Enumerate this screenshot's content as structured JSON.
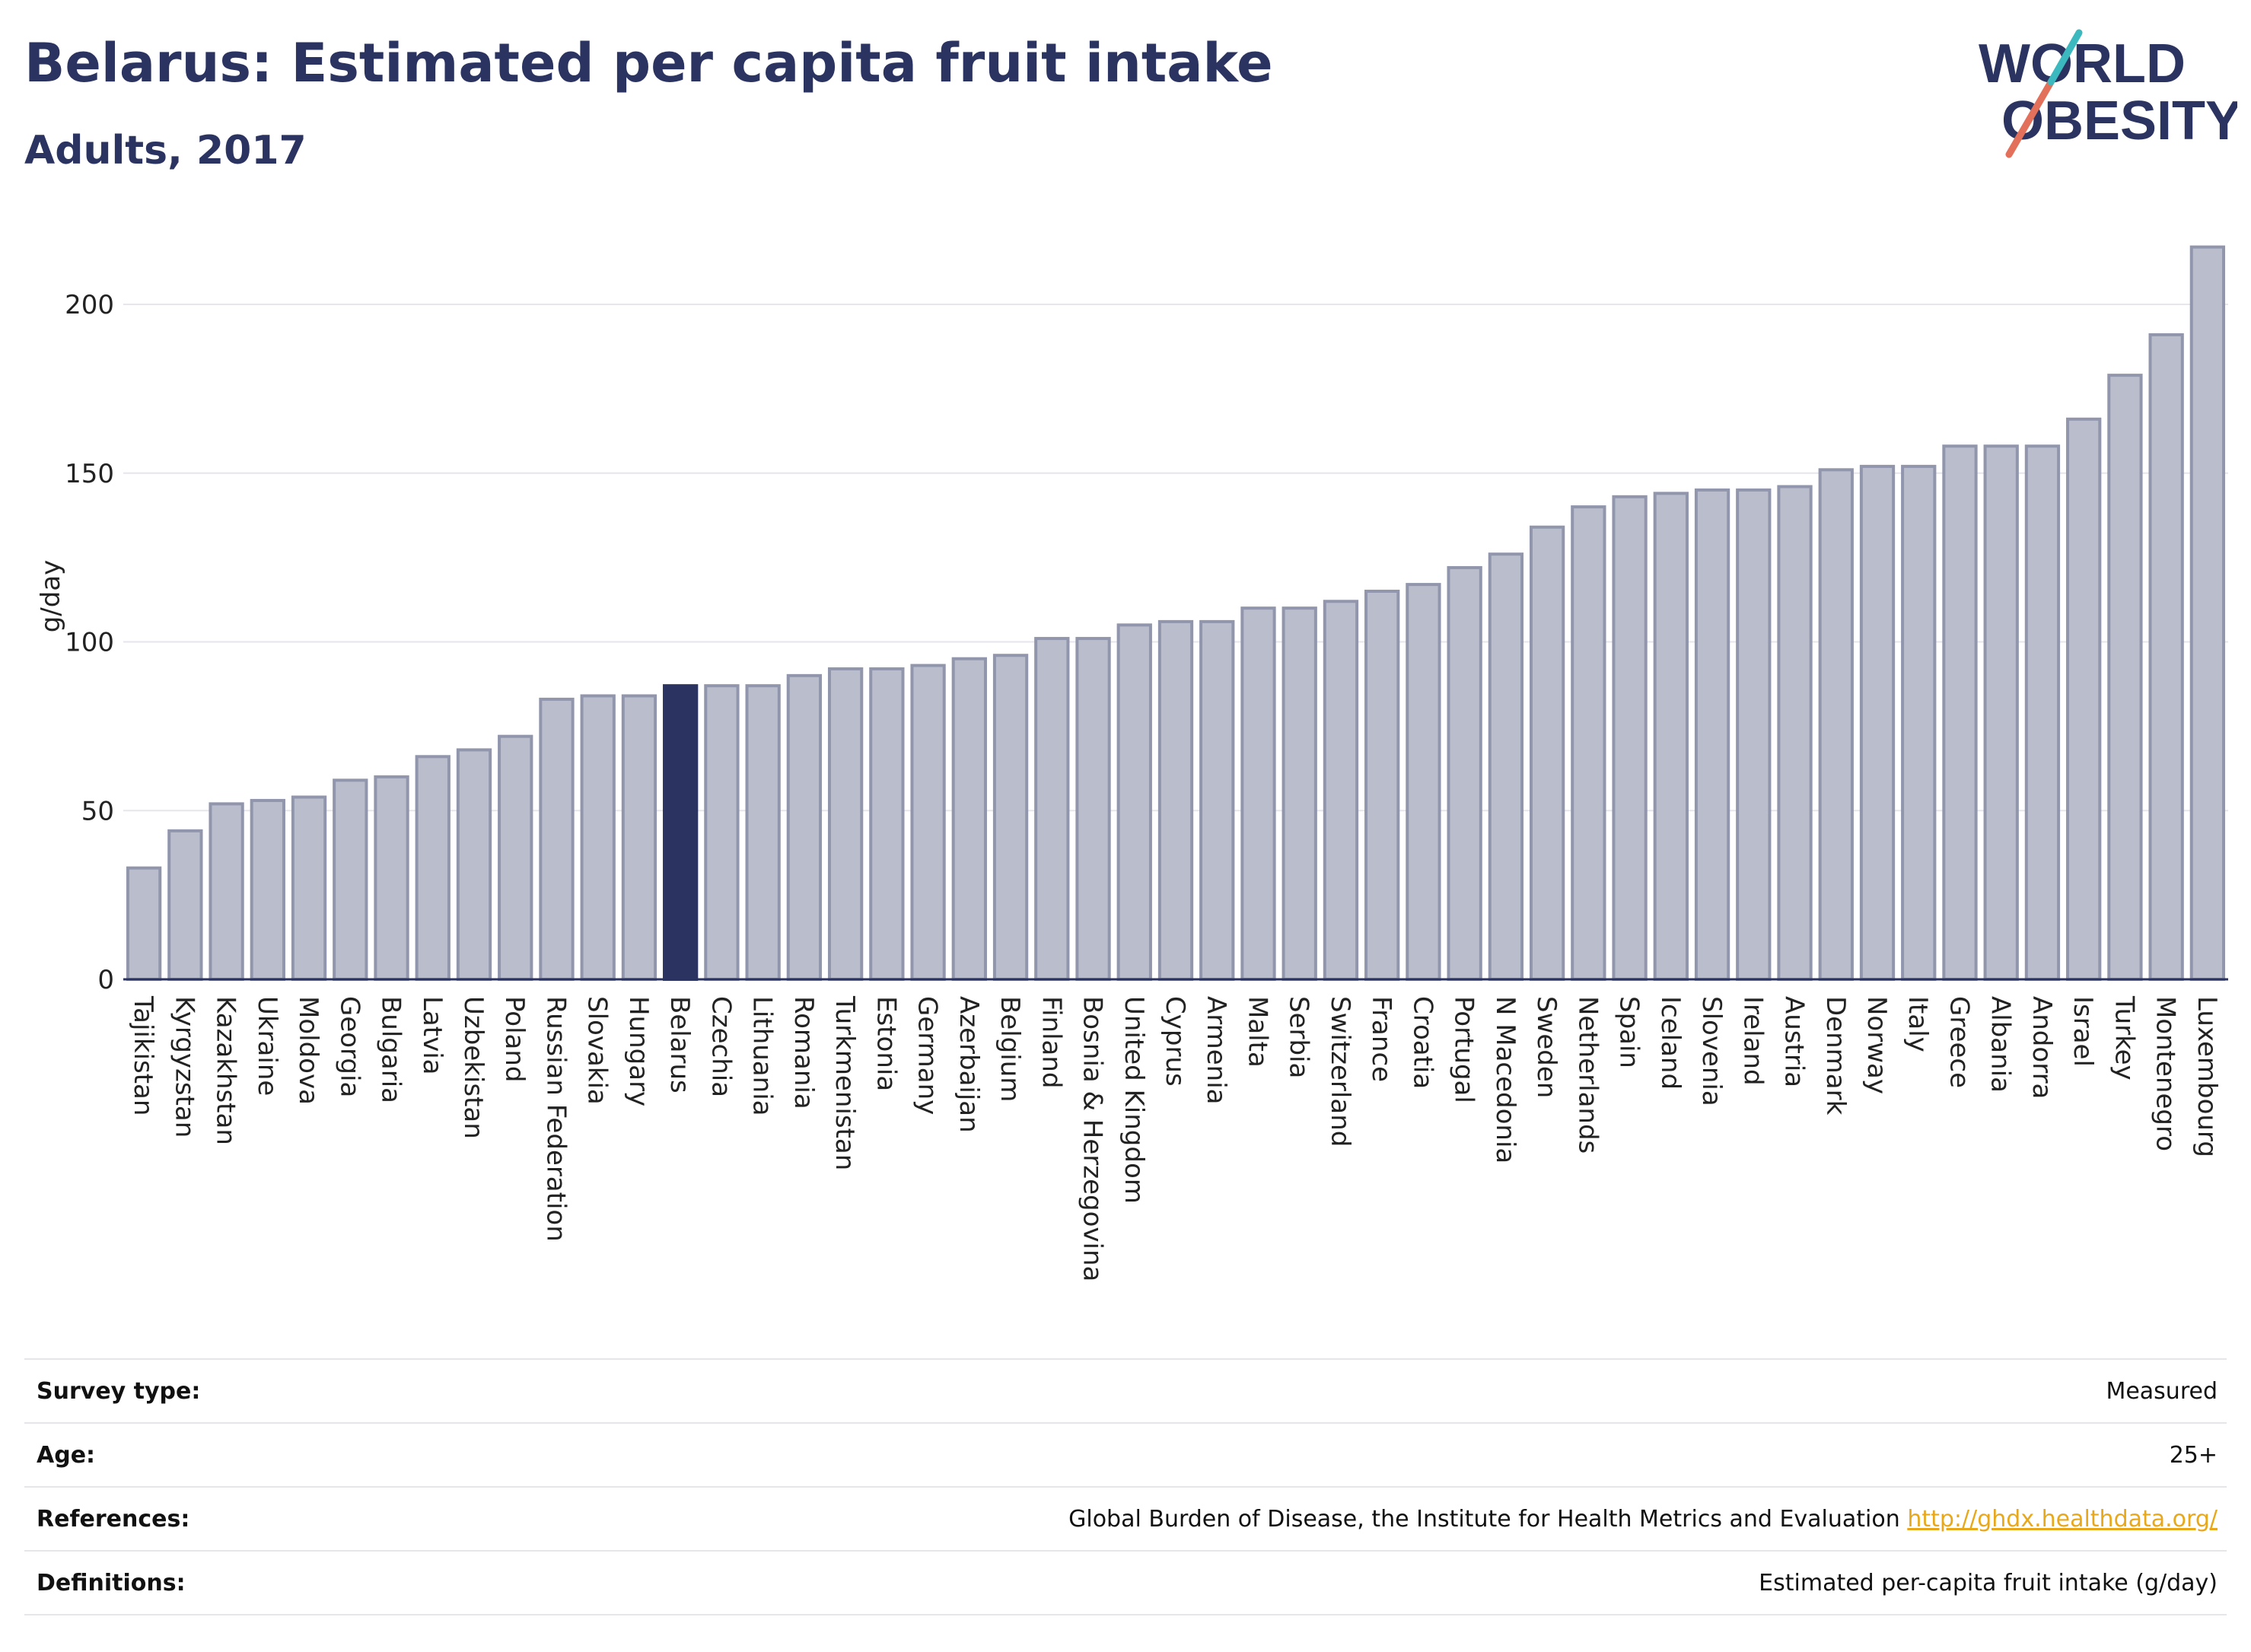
{
  "header": {
    "title": "Belarus: Estimated per capita fruit intake",
    "subtitle": "Adults, 2017"
  },
  "logo": {
    "line1": "WORLD",
    "line2": "OBESITY"
  },
  "chart_data": {
    "type": "bar",
    "ylabel": "g/day",
    "ylim": [
      0,
      220
    ],
    "yticks": [
      0,
      50,
      100,
      150,
      200
    ],
    "grid": true,
    "highlight": "Belarus",
    "colors": {
      "bar": "#b9bdcc",
      "bar_edge": "#9196ad",
      "highlight": "#2b3460"
    },
    "categories": [
      "Tajikistan",
      "Kyrgyzstan",
      "Kazakhstan",
      "Ukraine",
      "Moldova",
      "Georgia",
      "Bulgaria",
      "Latvia",
      "Uzbekistan",
      "Poland",
      "Russian Federation",
      "Slovakia",
      "Hungary",
      "Belarus",
      "Czechia",
      "Lithuania",
      "Romania",
      "Turkmenistan",
      "Estonia",
      "Germany",
      "Azerbaijan",
      "Belgium",
      "Finland",
      "Bosnia & Herzegovina",
      "United Kingdom",
      "Cyprus",
      "Armenia",
      "Malta",
      "Serbia",
      "Switzerland",
      "France",
      "Croatia",
      "Portugal",
      "N Macedonia",
      "Sweden",
      "Netherlands",
      "Spain",
      "Iceland",
      "Slovenia",
      "Ireland",
      "Austria",
      "Denmark",
      "Norway",
      "Italy",
      "Greece",
      "Albania",
      "Andorra",
      "Israel",
      "Turkey",
      "Montenegro",
      "Luxembourg"
    ],
    "values": [
      33,
      44,
      52,
      53,
      54,
      59,
      60,
      66,
      68,
      72,
      83,
      84,
      84,
      87,
      87,
      87,
      90,
      92,
      92,
      93,
      95,
      96,
      101,
      101,
      105,
      106,
      106,
      110,
      110,
      112,
      115,
      117,
      122,
      126,
      134,
      140,
      143,
      144,
      145,
      145,
      146,
      151,
      152,
      152,
      158,
      158,
      158,
      166,
      179,
      191,
      217
    ]
  },
  "meta": {
    "rows": [
      {
        "label": "Survey type:",
        "value": "Measured"
      },
      {
        "label": "Age:",
        "value": "25+"
      },
      {
        "label": "References:",
        "value": "Global Burden of Disease, the Institute for Health Metrics and Evaluation",
        "link": "http://ghdx.healthdata.org/"
      },
      {
        "label": "Definitions:",
        "value": "Estimated per-capita fruit intake (g/day)"
      }
    ]
  }
}
